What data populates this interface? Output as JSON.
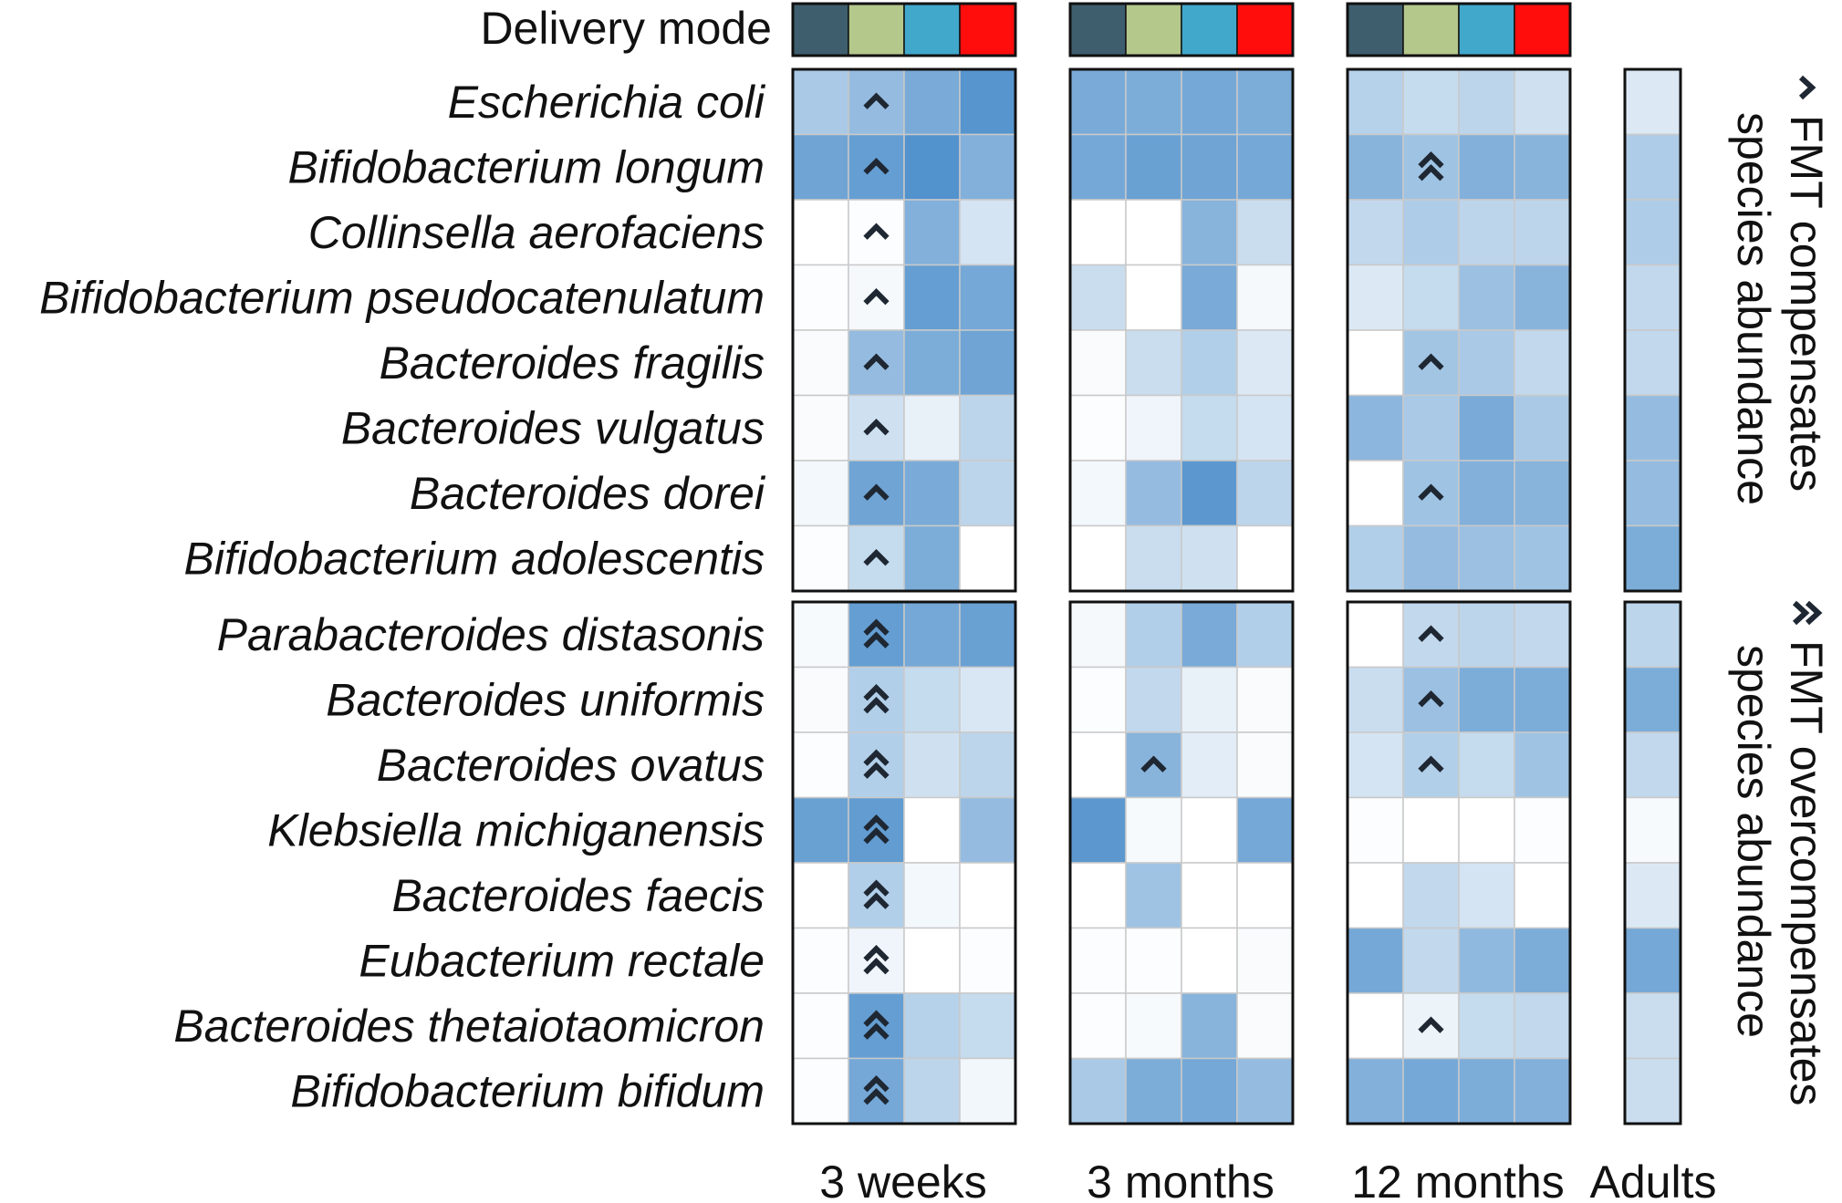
{
  "chart_data": {
    "type": "heatmap",
    "delivery_mode_label": "Delivery mode",
    "delivery_mode_colors": [
      "#3e5e6e",
      "#b5c88c",
      "#41a8cc",
      "#ff0d0d"
    ],
    "timepoints": [
      "3 weeks",
      "3 months",
      "12 months"
    ],
    "adults_label": "Adults",
    "species": [
      "Escherichia coli",
      "Bifidobacterium longum",
      "Collinsella aerofaciens",
      "Bifidobacterium pseudocatenulatum",
      "Bacteroides fragilis",
      "Bacteroides vulgatus",
      "Bacteroides dorei",
      "Bifidobacterium adolescentis",
      "Parabacteroides distasonis",
      "Bacteroides uniformis",
      "Bacteroides ovatus",
      "Klebsiella michiganensis",
      "Bacteroides faecis",
      "Eubacterium rectale",
      "Bacteroides thetaiotaomicron",
      "Bifidobacterium bifidum"
    ],
    "row_groups": [
      [
        0,
        7
      ],
      [
        8,
        15
      ]
    ],
    "values": {
      "3 weeks": [
        [
          0.45,
          0.55,
          0.7,
          0.88
        ],
        [
          0.75,
          0.8,
          0.9,
          0.65
        ],
        [
          0.0,
          0.02,
          0.65,
          0.22
        ],
        [
          0.02,
          0.05,
          0.8,
          0.72
        ],
        [
          0.03,
          0.55,
          0.68,
          0.75
        ],
        [
          0.03,
          0.25,
          0.12,
          0.35
        ],
        [
          0.06,
          0.75,
          0.7,
          0.35
        ],
        [
          0.02,
          0.3,
          0.68,
          0.0
        ],
        [
          0.04,
          0.8,
          0.72,
          0.78
        ],
        [
          0.03,
          0.4,
          0.3,
          0.2
        ],
        [
          0.02,
          0.4,
          0.25,
          0.35
        ],
        [
          0.78,
          0.82,
          0.0,
          0.55
        ],
        [
          0.0,
          0.4,
          0.06,
          0.0
        ],
        [
          0.02,
          0.08,
          0.0,
          0.02
        ],
        [
          0.02,
          0.8,
          0.38,
          0.3
        ],
        [
          0.02,
          0.72,
          0.35,
          0.07
        ]
      ],
      "3 months": [
        [
          0.7,
          0.68,
          0.72,
          0.68
        ],
        [
          0.72,
          0.78,
          0.75,
          0.72
        ],
        [
          0.0,
          0.0,
          0.62,
          0.28
        ],
        [
          0.28,
          0.0,
          0.7,
          0.05
        ],
        [
          0.03,
          0.28,
          0.4,
          0.18
        ],
        [
          0.02,
          0.08,
          0.3,
          0.22
        ],
        [
          0.06,
          0.55,
          0.85,
          0.35
        ],
        [
          0.0,
          0.28,
          0.25,
          0.0
        ],
        [
          0.05,
          0.4,
          0.7,
          0.4
        ],
        [
          0.02,
          0.32,
          0.12,
          0.03
        ],
        [
          0.0,
          0.62,
          0.15,
          0.03
        ],
        [
          0.85,
          0.04,
          0.0,
          0.72
        ],
        [
          0.0,
          0.5,
          0.0,
          0.0
        ],
        [
          0.02,
          0.02,
          0.0,
          0.03
        ],
        [
          0.02,
          0.04,
          0.62,
          0.03
        ],
        [
          0.45,
          0.68,
          0.72,
          0.55
        ]
      ],
      "12 months": [
        [
          0.38,
          0.3,
          0.35,
          0.25
        ],
        [
          0.62,
          0.5,
          0.65,
          0.62
        ],
        [
          0.32,
          0.42,
          0.35,
          0.35
        ],
        [
          0.18,
          0.3,
          0.52,
          0.62
        ],
        [
          0.0,
          0.48,
          0.45,
          0.32
        ],
        [
          0.6,
          0.45,
          0.7,
          0.45
        ],
        [
          0.0,
          0.5,
          0.65,
          0.62
        ],
        [
          0.4,
          0.55,
          0.52,
          0.5
        ],
        [
          0.0,
          0.32,
          0.35,
          0.32
        ],
        [
          0.28,
          0.52,
          0.68,
          0.68
        ],
        [
          0.22,
          0.4,
          0.3,
          0.5
        ],
        [
          0.02,
          0.0,
          0.0,
          0.02
        ],
        [
          0.0,
          0.32,
          0.22,
          0.0
        ],
        [
          0.72,
          0.32,
          0.58,
          0.68
        ],
        [
          0.0,
          0.1,
          0.3,
          0.32
        ],
        [
          0.65,
          0.72,
          0.68,
          0.65
        ]
      ],
      "Adults": [
        0.18,
        0.42,
        0.42,
        0.32,
        0.32,
        0.55,
        0.55,
        0.68,
        0.35,
        0.68,
        0.32,
        0.04,
        0.18,
        0.72,
        0.28,
        0.28
      ]
    },
    "markers": [
      {
        "timepoint": "3 weeks",
        "row": 0,
        "col": 1,
        "type": "compensates"
      },
      {
        "timepoint": "3 weeks",
        "row": 1,
        "col": 1,
        "type": "compensates"
      },
      {
        "timepoint": "3 weeks",
        "row": 2,
        "col": 1,
        "type": "compensates"
      },
      {
        "timepoint": "3 weeks",
        "row": 3,
        "col": 1,
        "type": "compensates"
      },
      {
        "timepoint": "3 weeks",
        "row": 4,
        "col": 1,
        "type": "compensates"
      },
      {
        "timepoint": "3 weeks",
        "row": 5,
        "col": 1,
        "type": "compensates"
      },
      {
        "timepoint": "3 weeks",
        "row": 6,
        "col": 1,
        "type": "compensates"
      },
      {
        "timepoint": "3 weeks",
        "row": 7,
        "col": 1,
        "type": "compensates"
      },
      {
        "timepoint": "3 weeks",
        "row": 8,
        "col": 1,
        "type": "overcompensates"
      },
      {
        "timepoint": "3 weeks",
        "row": 9,
        "col": 1,
        "type": "overcompensates"
      },
      {
        "timepoint": "3 weeks",
        "row": 10,
        "col": 1,
        "type": "overcompensates"
      },
      {
        "timepoint": "3 weeks",
        "row": 11,
        "col": 1,
        "type": "overcompensates"
      },
      {
        "timepoint": "3 weeks",
        "row": 12,
        "col": 1,
        "type": "overcompensates"
      },
      {
        "timepoint": "3 weeks",
        "row": 13,
        "col": 1,
        "type": "overcompensates"
      },
      {
        "timepoint": "3 weeks",
        "row": 14,
        "col": 1,
        "type": "overcompensates"
      },
      {
        "timepoint": "3 weeks",
        "row": 15,
        "col": 1,
        "type": "overcompensates"
      },
      {
        "timepoint": "3 months",
        "row": 10,
        "col": 1,
        "type": "compensates"
      },
      {
        "timepoint": "12 months",
        "row": 1,
        "col": 1,
        "type": "overcompensates"
      },
      {
        "timepoint": "12 months",
        "row": 4,
        "col": 1,
        "type": "compensates"
      },
      {
        "timepoint": "12 months",
        "row": 6,
        "col": 1,
        "type": "compensates"
      },
      {
        "timepoint": "12 months",
        "row": 8,
        "col": 1,
        "type": "compensates"
      },
      {
        "timepoint": "12 months",
        "row": 9,
        "col": 1,
        "type": "compensates"
      },
      {
        "timepoint": "12 months",
        "row": 10,
        "col": 1,
        "type": "compensates"
      },
      {
        "timepoint": "12 months",
        "row": 14,
        "col": 1,
        "type": "compensates"
      }
    ],
    "legend": [
      {
        "type": "compensates",
        "text": "FMT compensates",
        "subtext": "species abundance"
      },
      {
        "type": "overcompensates",
        "text": "FMT overcompensates",
        "subtext": "species abundance"
      }
    ],
    "colorscale": {
      "low": "#ffffff",
      "high": "#3f86c7"
    }
  }
}
